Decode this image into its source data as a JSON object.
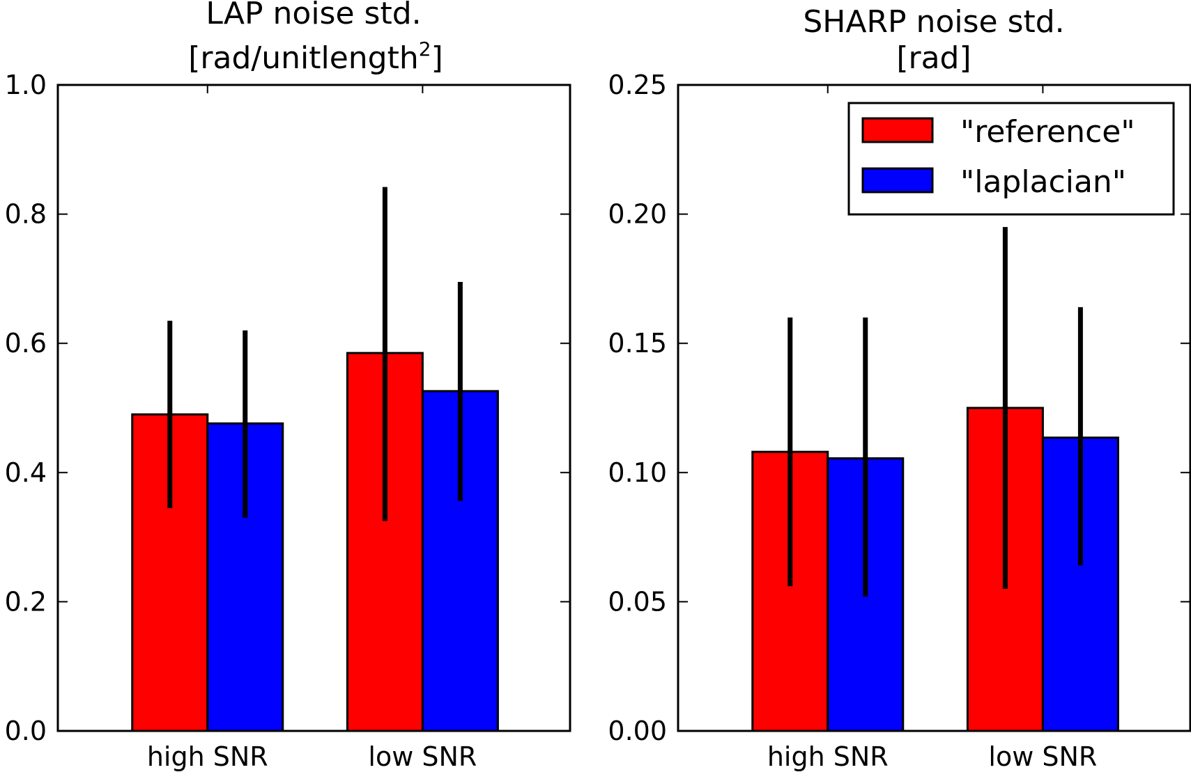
{
  "colors": {
    "reference": "#ff0000",
    "laplacian": "#0000ff",
    "edge": "#000000",
    "errorbar": "#000000"
  },
  "legend": {
    "placement": "top-right of right panel",
    "items": [
      {
        "label": "\"reference\"",
        "color": "#ff0000"
      },
      {
        "label": "\"laplacian\"",
        "color": "#0000ff"
      }
    ]
  },
  "chart_data": [
    {
      "type": "bar",
      "title_line1": "LAP noise std.",
      "title_line2": "[rad/unitlength",
      "title_sup": "2",
      "title_line2_end": "]",
      "categories": [
        "high SNR",
        "low SNR"
      ],
      "series": [
        {
          "name": "\"reference\"",
          "values": [
            0.49,
            0.585
          ],
          "err_low": [
            0.345,
            0.325
          ],
          "err_high": [
            0.635,
            0.842
          ]
        },
        {
          "name": "\"laplacian\"",
          "values": [
            0.476,
            0.526
          ],
          "err_low": [
            0.33,
            0.356
          ],
          "err_high": [
            0.62,
            0.695
          ]
        }
      ],
      "ylim": [
        0,
        1.0
      ],
      "yticks": [
        "0.0",
        "0.2",
        "0.4",
        "0.6",
        "0.8",
        "1.0"
      ],
      "grid": false
    },
    {
      "type": "bar",
      "title_line1": "SHARP noise std.",
      "title_line2": "[rad]",
      "categories": [
        "high SNR",
        "low SNR"
      ],
      "series": [
        {
          "name": "\"reference\"",
          "values": [
            0.108,
            0.125
          ],
          "err_low": [
            0.056,
            0.055
          ],
          "err_high": [
            0.16,
            0.195
          ]
        },
        {
          "name": "\"laplacian\"",
          "values": [
            0.1055,
            0.1135
          ],
          "err_low": [
            0.052,
            0.064
          ],
          "err_high": [
            0.16,
            0.164
          ]
        }
      ],
      "ylim": [
        0,
        0.25
      ],
      "yticks": [
        "0.00",
        "0.05",
        "0.10",
        "0.15",
        "0.20",
        "0.25"
      ],
      "grid": false
    }
  ]
}
